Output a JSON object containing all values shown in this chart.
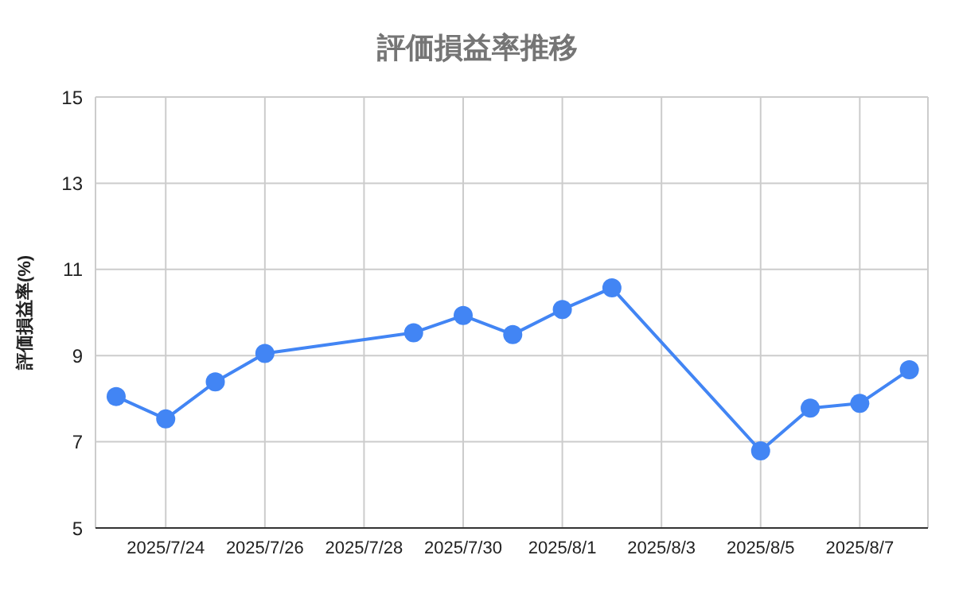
{
  "chart_data": {
    "type": "line",
    "title": "評価損益率推移",
    "ylabel": "評価損益率(%)",
    "x": [
      "2025-07-23",
      "2025-07-24",
      "2025-07-25",
      "2025-07-26",
      "2025-07-29",
      "2025-07-30",
      "2025-07-31",
      "2025-08-01",
      "2025-08-02",
      "2025-08-05",
      "2025-08-06",
      "2025-08-07",
      "2025-08-08"
    ],
    "series": [
      {
        "color": "#4285f4",
        "values": [
          8.05,
          7.53,
          8.39,
          9.05,
          9.53,
          9.93,
          9.49,
          10.07,
          10.57,
          6.79,
          7.78,
          7.89,
          8.67
        ]
      }
    ],
    "xlim": [
      "2025-07-22T14:00",
      "2025-08-08T09:00"
    ],
    "xticks": [
      {
        "value": "2025-07-24",
        "label": "2025/7/24"
      },
      {
        "value": "2025-07-26",
        "label": "2025/7/26"
      },
      {
        "value": "2025-07-28",
        "label": "2025/7/28"
      },
      {
        "value": "2025-07-30",
        "label": "2025/7/30"
      },
      {
        "value": "2025-08-01",
        "label": "2025/8/1"
      },
      {
        "value": "2025-08-03",
        "label": "2025/8/3"
      },
      {
        "value": "2025-08-05",
        "label": "2025/8/5"
      },
      {
        "value": "2025-08-07",
        "label": "2025/8/7"
      }
    ],
    "ylim": [
      5,
      15
    ],
    "yticks": [
      5,
      7,
      9,
      11,
      13,
      15
    ],
    "grid": true,
    "marker": "circle",
    "line_style": "solid"
  }
}
